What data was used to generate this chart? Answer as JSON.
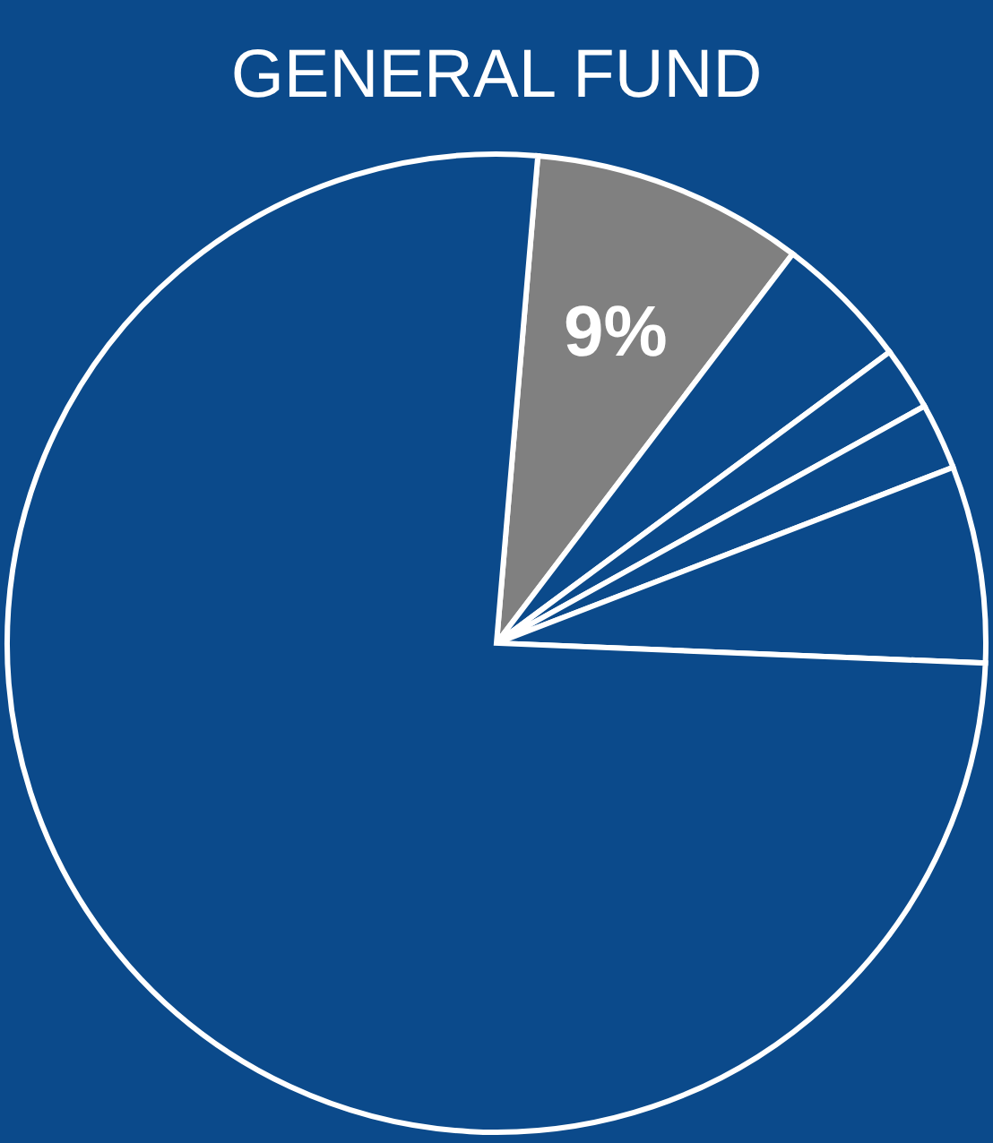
{
  "chart_data": {
    "type": "pie",
    "title": "GENERAL FUND",
    "categories": [
      null,
      null,
      null,
      null,
      null,
      null
    ],
    "values": [
      9,
      4.5,
      2.1,
      2.2,
      6.5,
      75.7
    ],
    "colors": [
      "#808080",
      "#0b4a8b",
      "#0b4a8b",
      "#0b4a8b",
      "#0b4a8b",
      "#0b4a8b"
    ],
    "value_labels": [
      "9%",
      null,
      null,
      null,
      null,
      null
    ]
  }
}
